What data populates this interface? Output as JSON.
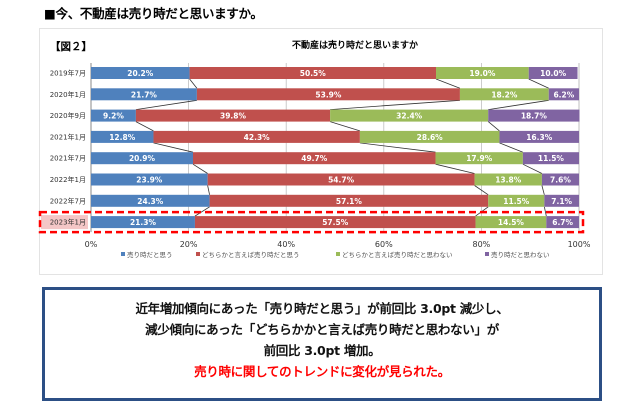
{
  "heading": "■今、不動産は売り時だと思いますか。",
  "figure_label": "【図２】",
  "summary": {
    "lines": [
      "近年増加傾向にあった「売り時だと思う」が前回比 3.0pt 減少し、",
      "減少傾向にあった「どちらかかと言えば売り時だと思わない」が",
      "前回比 3.0pt 増加。"
    ],
    "highlight": "売り時に関してのトレンドに変化が見られた。",
    "highlight_color": "#ff0000"
  },
  "chart_data": {
    "type": "bar",
    "orientation": "horizontal",
    "stacked": "percent",
    "title": "不動産は売り時だと思いますか",
    "categories": [
      "2019年7月",
      "2020年1月",
      "2020年9月",
      "2021年1月",
      "2021年7月",
      "2022年1月",
      "2022年7月",
      "2023年1月"
    ],
    "series": [
      {
        "name": "売り時だと思う",
        "color": "#4f81bd",
        "values": [
          20.2,
          21.7,
          9.2,
          12.8,
          20.9,
          23.9,
          24.3,
          21.3
        ]
      },
      {
        "name": "どちらかと言えば売り時だと思う",
        "color": "#c0504d",
        "values": [
          50.5,
          53.9,
          39.8,
          42.3,
          49.7,
          54.7,
          57.1,
          57.5
        ]
      },
      {
        "name": "どちらかと言えば売り時だと思わない",
        "color": "#9bbb59",
        "values": [
          19.0,
          18.2,
          32.4,
          28.6,
          17.9,
          13.8,
          11.5,
          14.5
        ]
      },
      {
        "name": "売り時だと思わない",
        "color": "#8064a2",
        "values": [
          10.0,
          6.2,
          18.7,
          16.3,
          11.5,
          7.6,
          7.1,
          6.7
        ]
      }
    ],
    "xlim": [
      0,
      100
    ],
    "xticks": [
      "0%",
      "20%",
      "40%",
      "60%",
      "80%",
      "100%"
    ],
    "xtick_values": [
      0,
      20,
      40,
      60,
      80,
      100
    ],
    "grid": true,
    "series_lines": true,
    "legend_position": "bottom",
    "highlighted_category": "2023年1月",
    "highlight_color": "#ff0000",
    "xlabel": "",
    "ylabel": ""
  }
}
